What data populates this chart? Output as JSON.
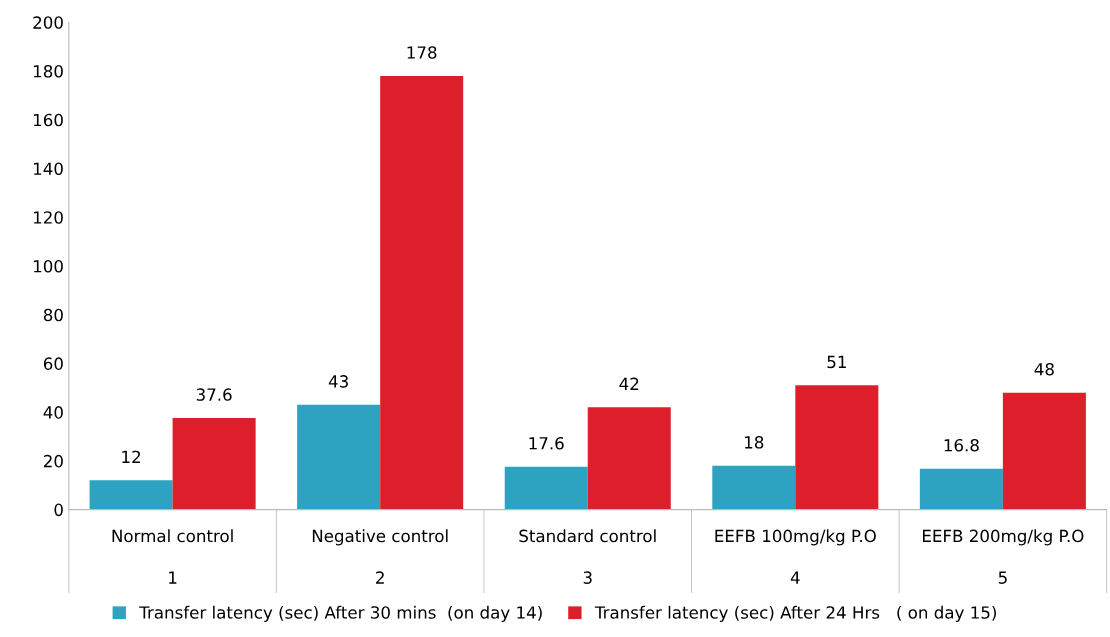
{
  "chart_data": {
    "type": "bar",
    "categories": [
      "Normal control\n1",
      "Negative control\n2",
      "Standard control\n3",
      "EEFB 100mg/kg P.O\n4",
      "EEFB 200mg/kg P.O\n5"
    ],
    "series": [
      {
        "name": "Transfer latency (sec) After 30 mins  (on day 14)",
        "color": "#2ea3c1",
        "values": [
          12,
          43,
          17.6,
          18,
          16.8
        ]
      },
      {
        "name": "Transfer latency (sec) After 24 Hrs   ( on day 15)",
        "color": "#dc1f2a",
        "values": [
          37.6,
          178,
          42,
          51,
          48
        ]
      }
    ],
    "ylim": [
      0,
      200
    ],
    "yticks": [
      0,
      20,
      40,
      60,
      80,
      100,
      120,
      140,
      160,
      180,
      200
    ],
    "data_labels": true,
    "grid": false,
    "legend": "bottom"
  }
}
